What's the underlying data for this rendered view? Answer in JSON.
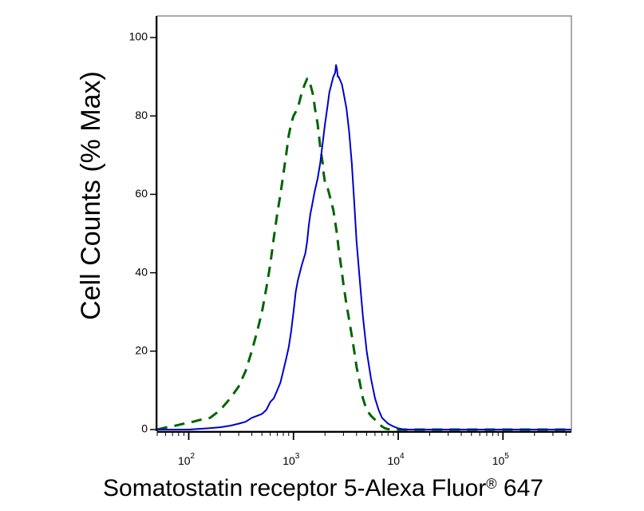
{
  "chart_data": {
    "type": "line",
    "xlabel": "Somatostatin receptor 5-Alexa Fluor",
    "xlabel_mark": "®",
    "xlabel_suffix": " 647",
    "ylabel": "Cell Counts (% Max)",
    "x_scale": "log",
    "xlim": [
      50,
      450000
    ],
    "ylim": [
      0,
      100
    ],
    "x_ticks": [
      {
        "base": "10",
        "exp": "2",
        "value": 100
      },
      {
        "base": "10",
        "exp": "3",
        "value": 1000
      },
      {
        "base": "10",
        "exp": "4",
        "value": 10000
      },
      {
        "base": "10",
        "exp": "5",
        "value": 100000
      }
    ],
    "y_ticks": [
      {
        "label": "0",
        "value": 0
      },
      {
        "label": "20",
        "value": 20
      },
      {
        "label": "40",
        "value": 40
      },
      {
        "label": "60",
        "value": 60
      },
      {
        "label": "80",
        "value": 80
      },
      {
        "label": "100",
        "value": 100
      }
    ],
    "series": [
      {
        "style": "dashed",
        "color": "#006400",
        "x": [
          50,
          60,
          75,
          90,
          110,
          130,
          160,
          200,
          250,
          300,
          350,
          400,
          450,
          500,
          550,
          600,
          650,
          700,
          750,
          800,
          850,
          900,
          950,
          1000,
          1050,
          1100,
          1150,
          1200,
          1280,
          1350,
          1400,
          1450,
          1500,
          1550,
          1600,
          1650,
          1700,
          1750,
          1800,
          1850,
          1900,
          1950,
          2000,
          2100,
          2200,
          2300,
          2400,
          2500,
          2600,
          2700,
          2800,
          2900,
          3000,
          3200,
          3400,
          3600,
          3800,
          4000,
          4300,
          4600,
          5000,
          5500,
          6000,
          6500,
          7000,
          7500,
          8000,
          9000,
          10000,
          11000,
          12000,
          15000,
          20000,
          50000,
          100000,
          450000
        ],
        "y": [
          0,
          0.5,
          1,
          1.5,
          2,
          2.5,
          3,
          5,
          8,
          11,
          15,
          20,
          25,
          30,
          36,
          42,
          49,
          55,
          60,
          65,
          70,
          75,
          78,
          80,
          81,
          82,
          84,
          86,
          88,
          89.5,
          89.5,
          88,
          86.5,
          85,
          82,
          80,
          78,
          75,
          72,
          70,
          68,
          65,
          63,
          62,
          60,
          58,
          56,
          53,
          50,
          46,
          43,
          40,
          37,
          32,
          28,
          24,
          20,
          16,
          12,
          8,
          5,
          3.5,
          2.5,
          1.5,
          0.8,
          0.3,
          0.1,
          0,
          0,
          0,
          0,
          0,
          0,
          0,
          0,
          0
        ]
      },
      {
        "style": "solid",
        "color": "#0000cc",
        "x": [
          50,
          100,
          150,
          200,
          250,
          300,
          350,
          400,
          450,
          500,
          550,
          600,
          650,
          700,
          750,
          800,
          850,
          900,
          950,
          1000,
          1050,
          1100,
          1150,
          1200,
          1300,
          1350,
          1400,
          1450,
          1500,
          1550,
          1600,
          1700,
          1800,
          1900,
          2000,
          2100,
          2200,
          2300,
          2400,
          2500,
          2550,
          2600,
          2650,
          2700,
          2800,
          2900,
          3000,
          3200,
          3400,
          3600,
          3800,
          4000,
          4300,
          4600,
          5000,
          5500,
          6000,
          6500,
          7000,
          8000,
          9000,
          10000,
          11000,
          12000,
          14000,
          20000,
          50000,
          100000,
          450000
        ],
        "y": [
          0,
          0,
          0.3,
          0.6,
          1,
          1.5,
          2,
          3,
          3.5,
          4,
          5,
          7,
          8,
          10,
          12,
          15,
          18,
          21,
          25,
          30,
          35,
          38,
          40,
          42,
          45,
          48,
          52,
          55,
          57,
          59,
          61,
          64,
          68,
          73,
          78,
          82,
          86,
          88,
          90,
          91,
          93,
          92,
          90,
          90,
          89,
          88,
          86,
          82,
          76,
          68,
          58,
          48,
          38,
          29,
          20,
          13,
          8,
          5,
          3,
          1.5,
          0.8,
          0.3,
          0.1,
          0,
          0,
          0,
          0,
          0,
          0
        ]
      }
    ]
  }
}
